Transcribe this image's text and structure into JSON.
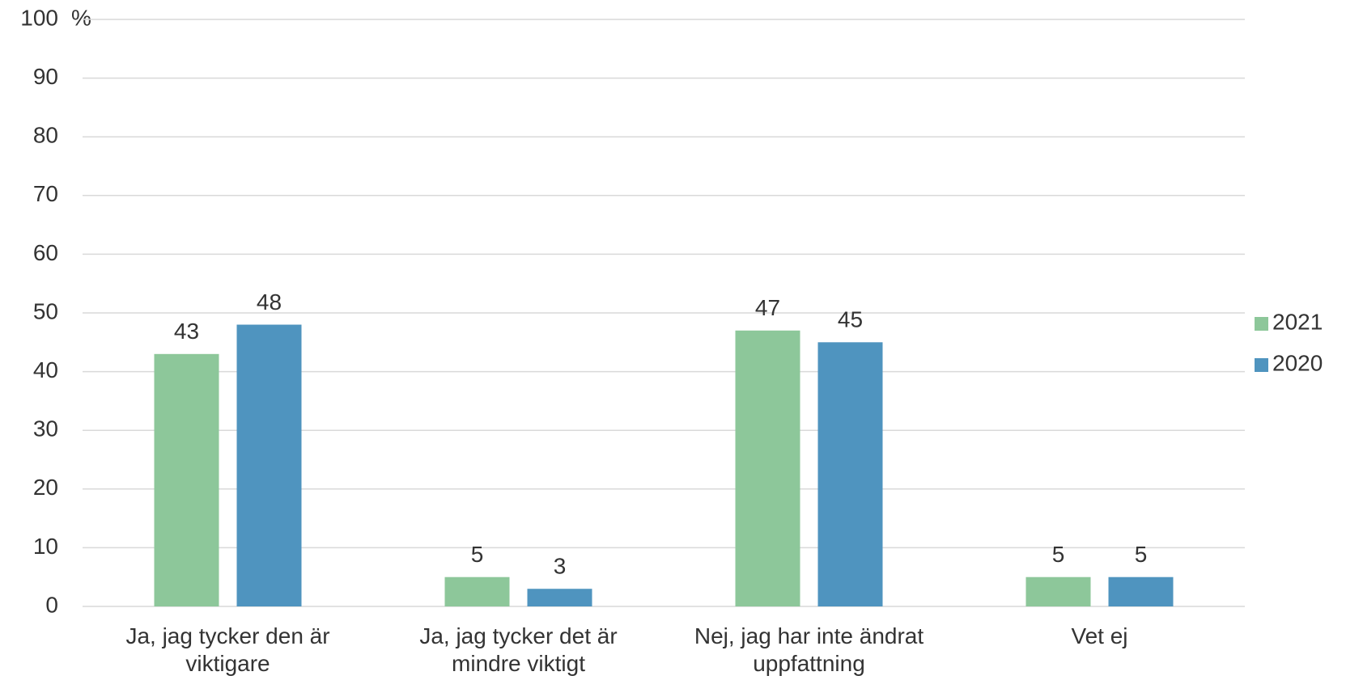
{
  "chart_data": {
    "type": "bar",
    "y_axis_label": "%",
    "categories": [
      "Ja, jag tycker den är viktigare",
      "Ja, jag tycker det är mindre viktigt",
      "Nej, jag har inte ändrat uppfattning",
      "Vet ej"
    ],
    "series": [
      {
        "name": "2021",
        "color": "#8dc79a",
        "values": [
          43,
          5,
          47,
          5
        ]
      },
      {
        "name": "2020",
        "color": "#4f94bf",
        "values": [
          48,
          3,
          45,
          5
        ]
      }
    ],
    "ylim": [
      0,
      100
    ],
    "yticks": [
      0,
      10,
      20,
      30,
      40,
      50,
      60,
      70,
      80,
      90,
      100
    ],
    "grid": true,
    "legend": "right",
    "data_labels": true
  }
}
